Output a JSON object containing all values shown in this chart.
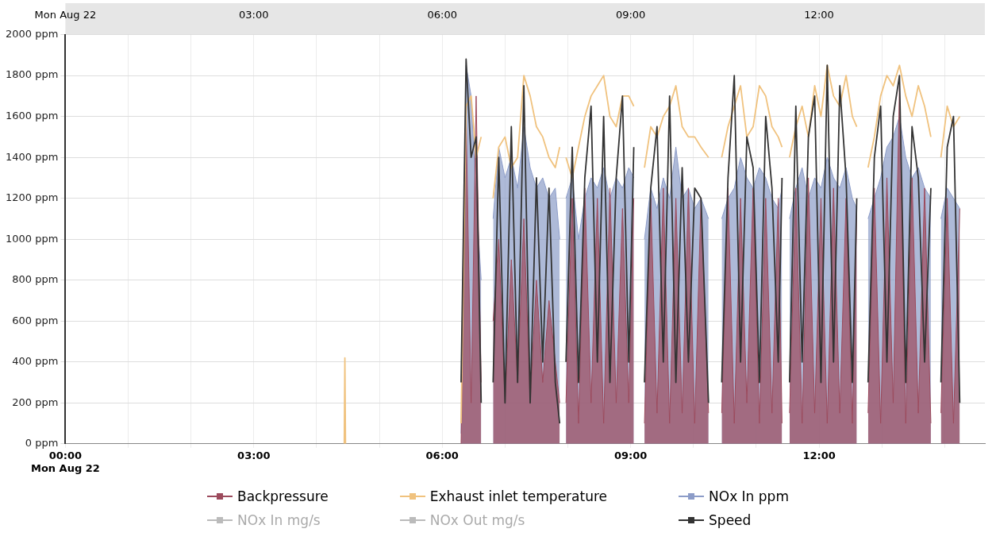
{
  "chart_data": {
    "type": "line",
    "x": [
      4.44,
      4.45,
      4.46,
      5.0,
      6.3,
      6.38,
      6.46,
      6.54,
      6.62,
      6.72,
      6.81,
      6.9,
      7.0,
      7.1,
      7.2,
      7.3,
      7.4,
      7.5,
      7.6,
      7.7,
      7.8,
      7.87,
      7.92,
      7.97,
      8.07,
      8.17,
      8.27,
      8.37,
      8.47,
      8.57,
      8.67,
      8.77,
      8.87,
      8.97,
      9.05,
      9.13,
      9.22,
      9.32,
      9.42,
      9.52,
      9.62,
      9.72,
      9.82,
      9.92,
      10.02,
      10.12,
      10.24,
      10.34,
      10.45,
      10.55,
      10.65,
      10.75,
      10.85,
      10.95,
      11.05,
      11.15,
      11.25,
      11.35,
      11.41,
      11.47,
      11.53,
      11.63,
      11.73,
      11.83,
      11.93,
      12.03,
      12.13,
      12.23,
      12.33,
      12.43,
      12.53,
      12.6,
      12.69,
      12.78,
      12.88,
      12.98,
      13.08,
      13.18,
      13.28,
      13.38,
      13.48,
      13.58,
      13.68,
      13.78,
      13.86,
      13.94,
      14.04,
      14.14,
      14.24
    ],
    "series": [
      {
        "name": "Backpressure",
        "type": "area",
        "color": "#9c4a5c",
        "values": [
          null,
          null,
          null,
          null,
          0,
          1600,
          200,
          1700,
          300,
          null,
          600,
          1000,
          200,
          900,
          300,
          1100,
          200,
          800,
          300,
          700,
          400,
          200,
          null,
          200,
          1200,
          100,
          1250,
          200,
          1200,
          100,
          1250,
          200,
          1150,
          200,
          1200,
          null,
          100,
          1200,
          150,
          1250,
          100,
          1200,
          150,
          1250,
          100,
          1200,
          150,
          null,
          150,
          1250,
          100,
          1200,
          200,
          1250,
          100,
          1200,
          150,
          1200,
          100,
          null,
          150,
          1250,
          100,
          1300,
          150,
          1200,
          100,
          1250,
          150,
          1200,
          100,
          1150,
          null,
          150,
          1250,
          100,
          1300,
          200,
          1750,
          100,
          1300,
          150,
          1250,
          100,
          null,
          150,
          1200,
          100,
          1150
        ]
      },
      {
        "name": "Exhaust inlet temperature",
        "type": "line",
        "color": "#f0c27e",
        "values": [
          0,
          420,
          0,
          null,
          100,
          1650,
          1700,
          1400,
          1500,
          null,
          1200,
          1450,
          1500,
          1350,
          1400,
          1800,
          1700,
          1550,
          1500,
          1400,
          1350,
          1450,
          null,
          1400,
          1300,
          1450,
          1600,
          1700,
          1750,
          1800,
          1600,
          1550,
          1700,
          1700,
          1650,
          null,
          1350,
          1550,
          1500,
          1600,
          1650,
          1750,
          1550,
          1500,
          1500,
          1450,
          1400,
          null,
          1400,
          1550,
          1650,
          1750,
          1500,
          1550,
          1750,
          1700,
          1550,
          1500,
          1450,
          null,
          1400,
          1550,
          1650,
          1500,
          1750,
          1600,
          1850,
          1700,
          1650,
          1800,
          1600,
          1550,
          null,
          1350,
          1500,
          1700,
          1800,
          1750,
          1850,
          1700,
          1600,
          1750,
          1650,
          1500,
          null,
          1400,
          1650,
          1550,
          1600
        ]
      },
      {
        "name": "NOx In ppm",
        "type": "area",
        "color": "#8c9cc8",
        "values": [
          null,
          null,
          null,
          null,
          50,
          1850,
          1700,
          1200,
          800,
          null,
          1100,
          1450,
          1300,
          1400,
          1250,
          1550,
          1350,
          1250,
          1300,
          1200,
          1250,
          1000,
          null,
          1200,
          1300,
          1000,
          1200,
          1300,
          1250,
          1350,
          1200,
          1300,
          1250,
          1350,
          1300,
          null,
          1000,
          1250,
          1150,
          1300,
          1200,
          1450,
          1200,
          1250,
          1150,
          1200,
          1100,
          null,
          1100,
          1200,
          1250,
          1400,
          1300,
          1250,
          1350,
          1300,
          1200,
          1150,
          1250,
          null,
          1100,
          1250,
          1350,
          1200,
          1300,
          1250,
          1400,
          1300,
          1250,
          1350,
          1200,
          1150,
          null,
          1100,
          1200,
          1300,
          1450,
          1500,
          1600,
          1400,
          1300,
          1350,
          1250,
          1200,
          null,
          1100,
          1250,
          1200,
          1150
        ]
      },
      {
        "name": "NOx In mg/s",
        "type": "line",
        "color": "#bbbbbb",
        "values": [
          null,
          null,
          null,
          null,
          null,
          null,
          null,
          null,
          null,
          null,
          null,
          null,
          null,
          null,
          null,
          null,
          null,
          null,
          null,
          null,
          null,
          null,
          null,
          null,
          null,
          null,
          null,
          null,
          null,
          null,
          null,
          null,
          null,
          null,
          null,
          null,
          null,
          null,
          null,
          null,
          null,
          null,
          null,
          null,
          null,
          null,
          null,
          null,
          null,
          null,
          null,
          null,
          null,
          null,
          null,
          null,
          null,
          null,
          null,
          null,
          null,
          null,
          null,
          null,
          null,
          null,
          null,
          null,
          null,
          null,
          null,
          null,
          null,
          null,
          null,
          null,
          null,
          null,
          null,
          null,
          null,
          null,
          null,
          null,
          null,
          null,
          null,
          null,
          null
        ]
      },
      {
        "name": "NOx Out mg/s",
        "type": "line",
        "color": "#bbbbbb",
        "values": [
          null,
          null,
          null,
          null,
          null,
          null,
          null,
          null,
          null,
          null,
          null,
          null,
          null,
          null,
          null,
          null,
          null,
          null,
          null,
          null,
          null,
          null,
          null,
          null,
          null,
          null,
          null,
          null,
          null,
          null,
          null,
          null,
          null,
          null,
          null,
          null,
          null,
          null,
          null,
          null,
          null,
          null,
          null,
          null,
          null,
          null,
          null,
          null,
          null,
          null,
          null,
          null,
          null,
          null,
          null,
          null,
          null,
          null,
          null,
          null,
          null,
          null,
          null,
          null,
          null,
          null,
          null,
          null,
          null,
          null,
          null,
          null,
          null,
          null,
          null,
          null,
          null,
          null,
          null,
          null,
          null,
          null,
          null,
          null,
          null,
          null,
          null,
          null,
          null
        ]
      },
      {
        "name": "Speed",
        "type": "line",
        "color": "#333333",
        "values": [
          null,
          null,
          null,
          null,
          300,
          1880,
          1400,
          1500,
          200,
          null,
          300,
          1400,
          200,
          1550,
          300,
          1750,
          200,
          1300,
          400,
          1250,
          300,
          100,
          null,
          400,
          1450,
          300,
          1300,
          1650,
          400,
          1600,
          300,
          1300,
          1700,
          400,
          1450,
          null,
          300,
          1250,
          1550,
          400,
          1700,
          300,
          1350,
          400,
          1250,
          1200,
          200,
          null,
          300,
          1300,
          1800,
          400,
          1500,
          1350,
          300,
          1600,
          1250,
          400,
          1300,
          null,
          300,
          1650,
          400,
          1500,
          1700,
          300,
          1850,
          400,
          1750,
          1300,
          300,
          1200,
          null,
          300,
          1400,
          1650,
          400,
          1600,
          1800,
          300,
          1550,
          1300,
          400,
          1250,
          null,
          300,
          1450,
          1600,
          200
        ]
      }
    ],
    "xlim": [
      0,
      14.64
    ],
    "xticks": [
      {
        "value": 0,
        "label": "00:00\nMon Aug 22"
      },
      {
        "value": 1,
        "label": null
      },
      {
        "value": 2,
        "label": null
      },
      {
        "value": 3,
        "label": "03:00"
      },
      {
        "value": 4,
        "label": null
      },
      {
        "value": 5,
        "label": null
      },
      {
        "value": 6,
        "label": "06:00"
      },
      {
        "value": 7,
        "label": null
      },
      {
        "value": 8,
        "label": null
      },
      {
        "value": 9,
        "label": "09:00"
      },
      {
        "value": 10,
        "label": null
      },
      {
        "value": 11,
        "label": null
      },
      {
        "value": 12,
        "label": "12:00"
      },
      {
        "value": 13,
        "label": null
      },
      {
        "value": 14,
        "label": null
      }
    ],
    "x2lim": [
      0,
      14.64
    ],
    "x2ticks": [
      {
        "value": 0,
        "label": "Mon Aug 22"
      },
      {
        "value": 3,
        "label": "03:00"
      },
      {
        "value": 6,
        "label": "06:00"
      },
      {
        "value": 9,
        "label": "09:00"
      },
      {
        "value": 12,
        "label": "12:00"
      }
    ],
    "ylim": [
      0,
      2000
    ],
    "yticks": [
      {
        "value": 0,
        "label": "0 ppm"
      },
      {
        "value": 200,
        "label": "200 ppm"
      },
      {
        "value": 400,
        "label": "400 ppm"
      },
      {
        "value": 600,
        "label": "600 ppm"
      },
      {
        "value": 800,
        "label": "800 ppm"
      },
      {
        "value": 1000,
        "label": "1000 ppm"
      },
      {
        "value": 1200,
        "label": "1200 ppm"
      },
      {
        "value": 1400,
        "label": "1400 ppm"
      },
      {
        "value": 1600,
        "label": "1600 ppm"
      },
      {
        "value": 1800,
        "label": "1800 ppm"
      },
      {
        "value": 2000,
        "label": "2000 ppm"
      }
    ],
    "grid": true,
    "legend": "bottom",
    "marker": "none",
    "line_style": "solid"
  }
}
